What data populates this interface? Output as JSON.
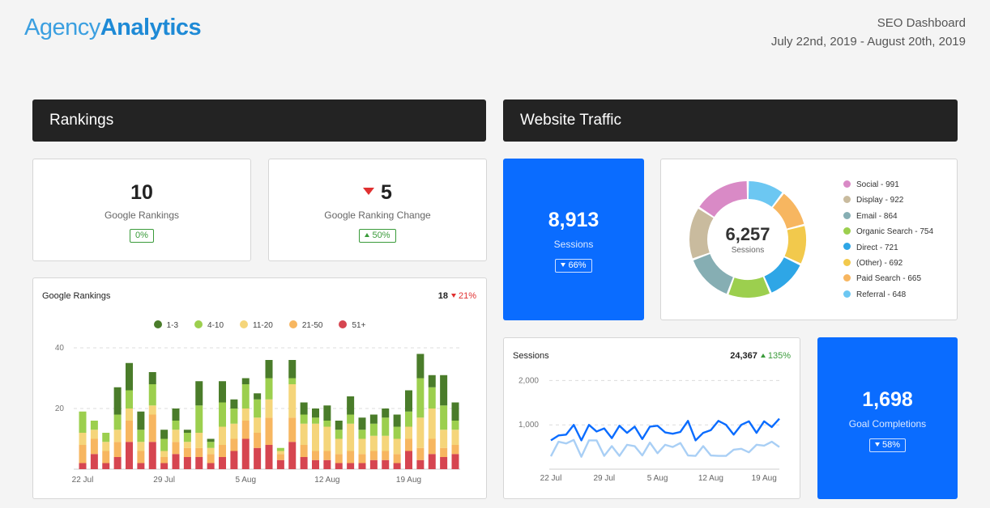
{
  "header": {
    "logo_part1": "Agency",
    "logo_part2": "Analytics",
    "dashboard_title": "SEO Dashboard",
    "date_range": "July 22nd, 2019 - August 20th, 2019"
  },
  "rankings": {
    "section_title": "Rankings",
    "kpi_google_rankings": {
      "value": "10",
      "label": "Google Rankings",
      "badge": "0%"
    },
    "kpi_ranking_change": {
      "value": "5",
      "label": "Google Ranking Change",
      "badge": "50%",
      "direction": "down"
    },
    "chart_card": {
      "title": "Google Rankings",
      "total": "18",
      "change": "21%",
      "change_direction": "down"
    }
  },
  "traffic": {
    "section_title": "Website Traffic",
    "sessions_kpi": {
      "value": "8,913",
      "label": "Sessions",
      "badge": "66%"
    },
    "donut": {
      "center_value": "6,257",
      "center_label": "Sessions",
      "legend": [
        {
          "label": "Social - 991",
          "color": "#d98ac6"
        },
        {
          "label": "Display - 922",
          "color": "#c9bb9e"
        },
        {
          "label": "Email - 864",
          "color": "#86aeb3"
        },
        {
          "label": "Organic Search - 754",
          "color": "#9ccf4e"
        },
        {
          "label": "Direct - 721",
          "color": "#2ea6e6"
        },
        {
          "label": "(Other) - 692",
          "color": "#f2c94c"
        },
        {
          "label": "Paid Search - 665",
          "color": "#f7b660"
        },
        {
          "label": "Referral - 648",
          "color": "#6cc7f2"
        }
      ]
    },
    "sessions_chart_card": {
      "title": "Sessions",
      "total": "24,367",
      "change": "135%",
      "change_direction": "up"
    },
    "goal_kpi": {
      "value": "1,698",
      "label": "Goal Completions",
      "badge": "58%"
    }
  },
  "chart_data": [
    {
      "type": "bar",
      "stacked": true,
      "x_tick_labels": [
        "22 Jul",
        "29 Jul",
        "5 Aug",
        "12 Aug",
        "19 Aug"
      ],
      "ylim": [
        0,
        40
      ],
      "y_ticks": [
        20,
        40
      ],
      "grid": true,
      "legend_position": "top",
      "series": [
        {
          "name": "51+",
          "color": "#d64550",
          "values": [
            2,
            5,
            2,
            4,
            9,
            2,
            9,
            2,
            5,
            4,
            4,
            2,
            4,
            6,
            10,
            7,
            8,
            3,
            9,
            4,
            3,
            3,
            2,
            2,
            2,
            3,
            3,
            2,
            6,
            3,
            5,
            4,
            5
          ]
        },
        {
          "name": "21-50",
          "color": "#f7b660",
          "values": [
            6,
            5,
            4,
            5,
            7,
            4,
            9,
            2,
            4,
            3,
            3,
            3,
            4,
            4,
            6,
            5,
            9,
            2,
            8,
            4,
            3,
            3,
            3,
            4,
            3,
            3,
            3,
            3,
            4,
            4,
            5,
            3,
            3
          ]
        },
        {
          "name": "11-20",
          "color": "#f5d57a",
          "values": [
            4,
            3,
            3,
            4,
            4,
            3,
            3,
            2,
            4,
            2,
            5,
            2,
            6,
            5,
            4,
            5,
            6,
            1,
            11,
            7,
            9,
            8,
            5,
            9,
            5,
            5,
            5,
            5,
            4,
            10,
            10,
            6,
            5
          ]
        },
        {
          "name": "4-10",
          "color": "#9ccf4e",
          "values": [
            7,
            3,
            3,
            5,
            6,
            4,
            7,
            4,
            3,
            3,
            9,
            2,
            8,
            5,
            8,
            6,
            7,
            1,
            2,
            3,
            2,
            2,
            3,
            3,
            3,
            4,
            6,
            4,
            5,
            13,
            7,
            8,
            3
          ]
        },
        {
          "name": "1-3",
          "color": "#4a7c2a",
          "values": [
            0,
            0,
            0,
            9,
            9,
            6,
            4,
            3,
            4,
            1,
            8,
            1,
            7,
            3,
            2,
            2,
            6,
            0,
            6,
            4,
            3,
            5,
            3,
            6,
            4,
            3,
            3,
            4,
            7,
            8,
            4,
            10,
            6
          ]
        }
      ]
    },
    {
      "type": "line",
      "x_tick_labels": [
        "22 Jul",
        "29 Jul",
        "5 Aug",
        "12 Aug",
        "19 Aug"
      ],
      "y_ticks": [
        1000,
        2000
      ],
      "ylim": [
        0,
        2300
      ],
      "grid": true,
      "series": [
        {
          "color": "#0a6cff",
          "values": [
            650,
            760,
            780,
            1000,
            650,
            1000,
            850,
            920,
            700,
            980,
            820,
            960,
            680,
            960,
            980,
            830,
            800,
            840,
            1090,
            650,
            820,
            880,
            1090,
            1000,
            780,
            1000,
            1080,
            820,
            1080,
            950,
            1140
          ]
        },
        {
          "color": "#a9cff5",
          "values": [
            290,
            620,
            580,
            660,
            280,
            650,
            650,
            300,
            520,
            300,
            550,
            520,
            310,
            600,
            360,
            550,
            500,
            590,
            310,
            300,
            520,
            310,
            300,
            300,
            440,
            460,
            380,
            550,
            530,
            620,
            500
          ]
        }
      ]
    }
  ]
}
